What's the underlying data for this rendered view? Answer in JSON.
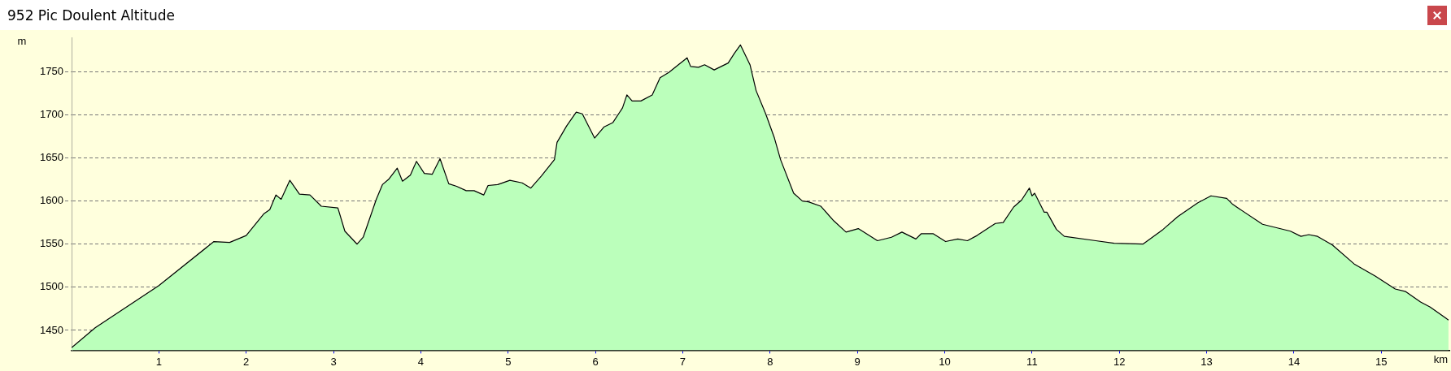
{
  "chart_data": {
    "type": "area",
    "title": "952 Pic Doulent Altitude",
    "xlabel": "km",
    "ylabel": "m",
    "x": [
      0,
      0.27,
      1,
      1.63,
      1.81,
      2.0,
      2.2,
      2.27,
      2.34,
      2.4,
      2.5,
      2.61,
      2.73,
      2.86,
      3.05,
      3.13,
      3.27,
      3.34,
      3.49,
      3.56,
      3.63,
      3.73,
      3.79,
      3.88,
      3.95,
      4.04,
      4.13,
      4.22,
      4.32,
      4.41,
      4.52,
      4.61,
      4.72,
      4.77,
      4.88,
      5.02,
      5.16,
      5.26,
      5.38,
      5.53,
      5.56,
      5.67,
      5.78,
      5.85,
      5.99,
      6.1,
      6.2,
      6.31,
      6.36,
      6.42,
      6.52,
      6.65,
      6.74,
      6.84,
      6.95,
      7.05,
      7.09,
      7.18,
      7.25,
      7.36,
      7.52,
      7.59,
      7.66,
      7.77,
      7.84,
      7.95,
      8.05,
      8.12,
      8.27,
      8.37,
      8.44,
      8.58,
      8.73,
      8.87,
      9.01,
      9.23,
      9.39,
      9.51,
      9.67,
      9.73,
      9.87,
      10.01,
      10.15,
      10.26,
      10.37,
      10.58,
      10.67,
      10.79,
      10.88,
      10.97,
      11.0,
      11.03,
      11.14,
      11.17,
      11.28,
      11.37,
      11.73,
      11.94,
      12.27,
      12.5,
      12.67,
      12.9,
      13.05,
      13.23,
      13.3,
      13.64,
      13.96,
      14.08,
      14.17,
      14.27,
      14.44,
      14.69,
      14.93,
      15.16,
      15.28,
      15.45,
      15.56,
      15.77
    ],
    "series": [
      {
        "color": "#bbffbb",
        "values": [
          1430,
          1453,
          1502,
          1553,
          1552,
          1560,
          1585,
          1590,
          1607,
          1602,
          1624,
          1608,
          1607,
          1594,
          1592,
          1565,
          1550,
          1558,
          1602,
          1619,
          1625,
          1638,
          1623,
          1630,
          1646,
          1632,
          1631,
          1649,
          1620,
          1617,
          1612,
          1612,
          1607,
          1618,
          1619,
          1624,
          1621,
          1615,
          1629,
          1648,
          1668,
          1687,
          1703,
          1701,
          1673,
          1686,
          1691,
          1708,
          1723,
          1716,
          1716,
          1723,
          1743,
          1749,
          1758,
          1766,
          1756,
          1755,
          1758,
          1752,
          1760,
          1771,
          1781,
          1758,
          1728,
          1701,
          1673,
          1648,
          1609,
          1600,
          1599,
          1594,
          1577,
          1564,
          1568,
          1554,
          1558,
          1564,
          1556,
          1562,
          1562,
          1553,
          1556,
          1554,
          1560,
          1574,
          1575,
          1593,
          1601,
          1615,
          1606,
          1609,
          1587,
          1587,
          1567,
          1559,
          1554,
          1551,
          1550,
          1567,
          1582,
          1598,
          1606,
          1603,
          1596,
          1573,
          1565,
          1559,
          1561,
          1559,
          1549,
          1527,
          1513,
          1498,
          1495,
          1483,
          1477,
          1462
        ]
      }
    ],
    "xlim": [
      0,
      15.78
    ],
    "ylim": [
      1427,
      1789
    ],
    "xticks": [
      1,
      2,
      3,
      4,
      5,
      6,
      7,
      8,
      9,
      10,
      11,
      12,
      13,
      14,
      15
    ],
    "yticks": [
      1450,
      1500,
      1550,
      1600,
      1650,
      1700,
      1750
    ],
    "grid": "y",
    "line_style": "solid",
    "marker": "none"
  }
}
